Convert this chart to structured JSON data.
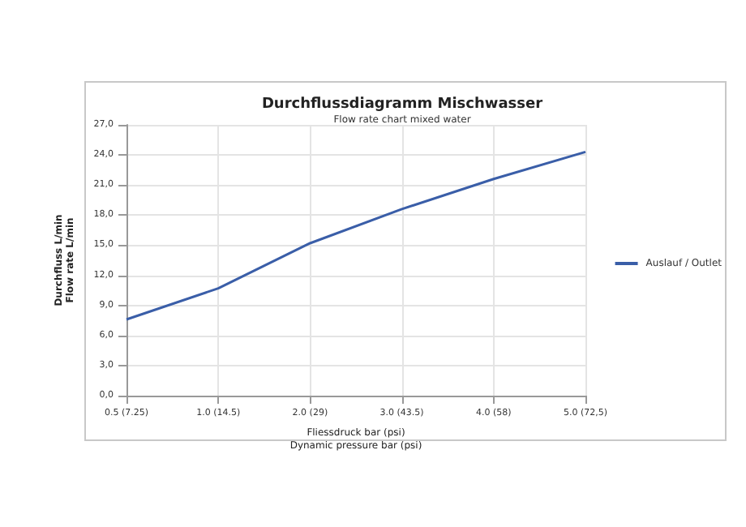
{
  "chart_data": {
    "type": "line",
    "title": "Durchflussdiagramm Mischwasser",
    "subtitle": "Flow rate chart mixed water",
    "xlabel": "Fliessdruck bar (psi)\nDynamic pressure bar (psi)",
    "ylabel": "Durchfluss L/min\nFlow rate L/min",
    "categories": [
      "0.5 (7.25)",
      "1.0 (14.5)",
      "2.0 (29)",
      "3.0 (43.5)",
      "4.0 (58)",
      "5.0 (72,5)"
    ],
    "series": [
      {
        "name": "Auslauf / Outlet",
        "color": "#3a5ea8",
        "values": [
          7.6,
          10.7,
          15.2,
          18.6,
          21.6,
          24.3
        ]
      }
    ],
    "ylim": [
      0,
      27
    ],
    "yticks": [
      {
        "value": 0,
        "label": "0,0"
      },
      {
        "value": 3,
        "label": "3,0"
      },
      {
        "value": 6,
        "label": "6,0"
      },
      {
        "value": 9,
        "label": "9,0"
      },
      {
        "value": 12,
        "label": "12,0"
      },
      {
        "value": 15,
        "label": "15,0"
      },
      {
        "value": 18,
        "label": "18,0"
      },
      {
        "value": 21,
        "label": "21,0"
      },
      {
        "value": 24,
        "label": "24,0"
      },
      {
        "value": 27,
        "label": "27,0"
      }
    ],
    "grid": true,
    "legend": "right",
    "marker": "none",
    "line_style": "solid"
  }
}
